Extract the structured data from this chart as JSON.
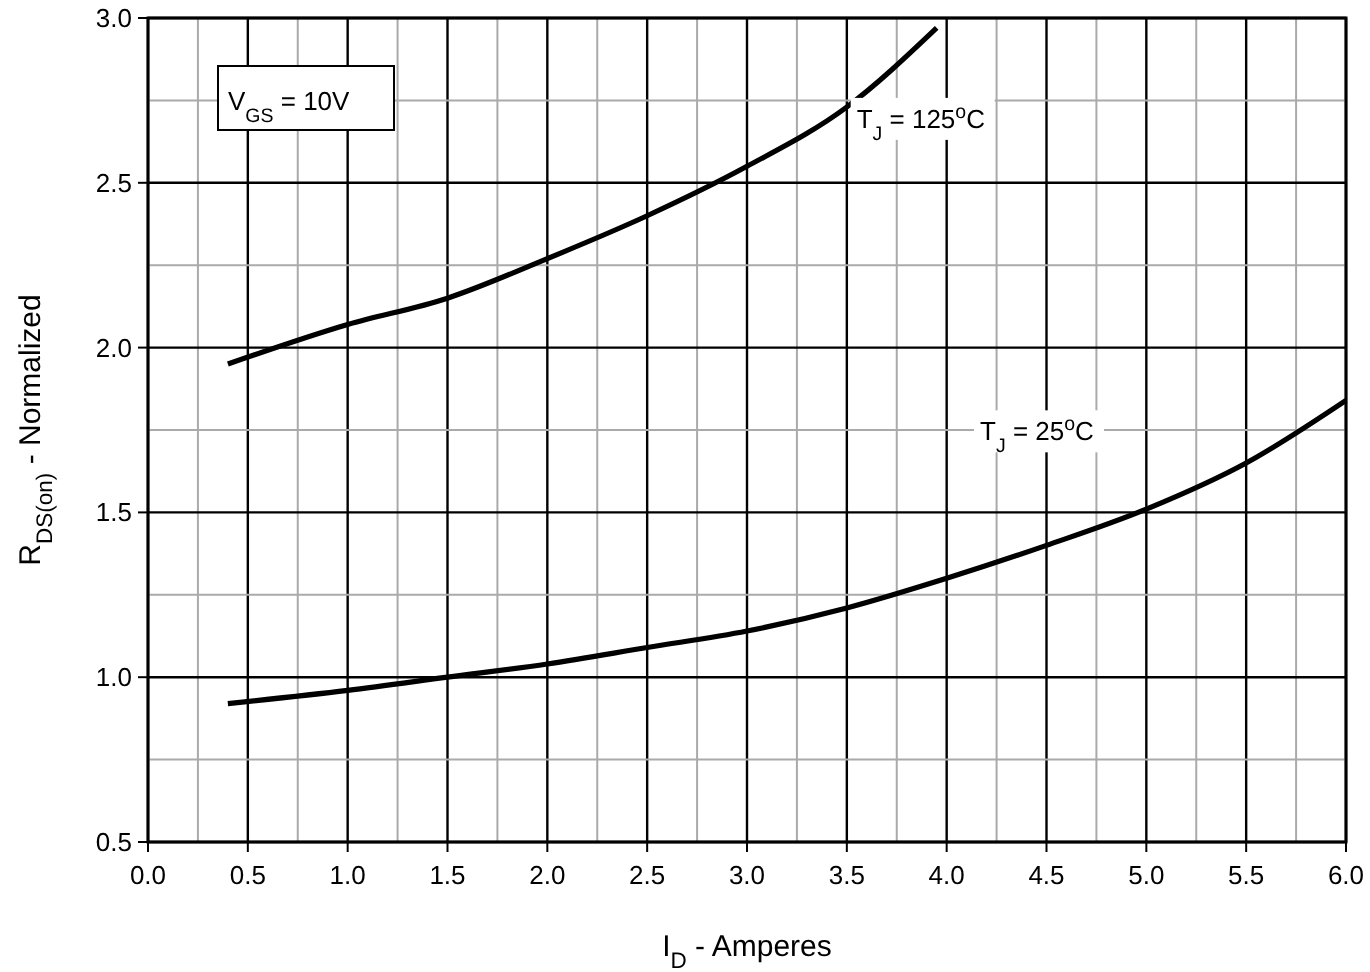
{
  "chart_data": {
    "type": "line",
    "xlabel": "I$_{D}$ - Amperes",
    "ylabel": "R$_{DS(on)}$ - Normalized",
    "annotations": [
      "V$_{GS}$ = 10V"
    ],
    "xlim": [
      0,
      6
    ],
    "ylim": [
      0.5,
      3
    ],
    "xticks": [
      {
        "value": 0,
        "label": "0.0"
      },
      {
        "value": 0.25,
        "label": null
      },
      0.5,
      {
        "value": 0.75,
        "label": null
      },
      {
        "value": 1,
        "label": "1.0"
      },
      {
        "value": 1.25,
        "label": null
      },
      1.5,
      {
        "value": 1.75,
        "label": null
      },
      {
        "value": 2,
        "label": "2.0"
      },
      {
        "value": 2.25,
        "label": null
      },
      2.5,
      {
        "value": 2.75,
        "label": null
      },
      {
        "value": 3,
        "label": "3.0"
      },
      {
        "value": 3.25,
        "label": null
      },
      3.5,
      {
        "value": 3.75,
        "label": null
      },
      {
        "value": 4,
        "label": "4.0"
      },
      {
        "value": 4.25,
        "label": null
      },
      4.5,
      {
        "value": 4.75,
        "label": null
      },
      {
        "value": 5,
        "label": "5.0"
      },
      {
        "value": 5.25,
        "label": null
      },
      5.5,
      {
        "value": 5.75,
        "label": null
      },
      {
        "value": 6,
        "label": "6.0"
      }
    ],
    "yticks": [
      0.5,
      {
        "value": 0.75,
        "label": null
      },
      {
        "value": 1,
        "label": "1.0"
      },
      {
        "value": 1.25,
        "label": null
      },
      1.5,
      {
        "value": 1.75,
        "label": null
      },
      {
        "value": 2,
        "label": "2.0"
      },
      {
        "value": 2.25,
        "label": null
      },
      2.5,
      {
        "value": 2.75,
        "label": null
      },
      {
        "value": 3,
        "label": "3.0"
      }
    ],
    "grid": true,
    "marker": "none",
    "line_style": "solid",
    "series": [
      {
        "name": "T$_{J}$ = 125$^{o}$C",
        "color": "#000000",
        "x": [
          0.4,
          1.0,
          1.5,
          2.0,
          2.5,
          3.0,
          3.5,
          3.95
        ],
        "values": [
          1.95,
          2.07,
          2.15,
          2.27,
          2.4,
          2.55,
          2.73,
          2.97
        ]
      },
      {
        "name": "T$_{J}$ = 25$^{o}$C",
        "color": "#000000",
        "x": [
          0.4,
          1.0,
          1.5,
          2.0,
          2.5,
          3.0,
          3.5,
          4.0,
          4.5,
          5.0,
          5.5,
          6.0
        ],
        "values": [
          0.92,
          0.96,
          1.0,
          1.04,
          1.09,
          1.14,
          1.21,
          1.3,
          1.4,
          1.51,
          1.65,
          1.84
        ]
      }
    ]
  }
}
